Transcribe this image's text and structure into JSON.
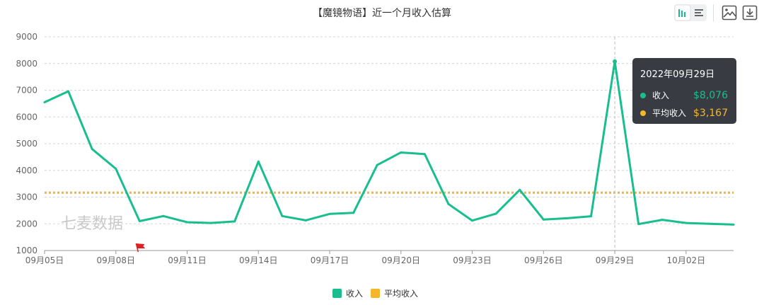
{
  "chart_data": {
    "type": "line",
    "title": "【魔镜物语】近一个月收入估算",
    "x": [
      "09月05日",
      "09月06日",
      "09月07日",
      "09月08日",
      "09月09日",
      "09月10日",
      "09月11日",
      "09月12日",
      "09月13日",
      "09月14日",
      "09月15日",
      "09月16日",
      "09月17日",
      "09月18日",
      "09月19日",
      "09月20日",
      "09月21日",
      "09月22日",
      "09月23日",
      "09月24日",
      "09月25日",
      "09月26日",
      "09月27日",
      "09月28日",
      "09月29日",
      "09月30日",
      "10月01日",
      "10月02日",
      "10月03日",
      "10月04日"
    ],
    "x_tick_labels": [
      "09月05日",
      "09月08日",
      "09月11日",
      "09月14日",
      "09月17日",
      "09月20日",
      "09月23日",
      "09月26日",
      "09月29日",
      "10月02日"
    ],
    "series": [
      {
        "name": "收入",
        "color": "#19be8f",
        "values": [
          6550,
          6960,
          4800,
          4060,
          2100,
          2290,
          2060,
          2030,
          2090,
          4330,
          2290,
          2130,
          2370,
          2410,
          4200,
          4670,
          4610,
          2740,
          2120,
          2380,
          3270,
          2160,
          2210,
          2280,
          8076,
          1990,
          2150,
          2030,
          2000,
          1970
        ]
      },
      {
        "name": "平均收入",
        "color": "#f5b62a",
        "style": "dotted",
        "values": [
          3167,
          3167,
          3167,
          3167,
          3167,
          3167,
          3167,
          3167,
          3167,
          3167,
          3167,
          3167,
          3167,
          3167,
          3167,
          3167,
          3167,
          3167,
          3167,
          3167,
          3167,
          3167,
          3167,
          3167,
          3167,
          3167,
          3167,
          3167,
          3167,
          3167
        ]
      }
    ],
    "ylim": [
      1000,
      9000
    ],
    "y_ticks": [
      1000,
      2000,
      3000,
      4000,
      5000,
      6000,
      7000,
      8000,
      9000
    ],
    "grid": true,
    "legend_position": "bottom-center",
    "mark_flag": {
      "x": "09月09日",
      "color": "#e02020"
    },
    "watermark": "七麦数据",
    "tooltip": {
      "x": "09月29日",
      "date": "2022年09月29日",
      "rows": [
        {
          "name": "收入",
          "value": "$8,076",
          "color": "#19be8f"
        },
        {
          "name": "平均收入",
          "value": "$3,167",
          "color": "#f5b62a"
        }
      ]
    }
  },
  "toolbar": {
    "chart_type_icons": [
      "bar-chart-icon",
      "list-icon"
    ],
    "export_icons": [
      "image-icon",
      "download-icon"
    ]
  }
}
